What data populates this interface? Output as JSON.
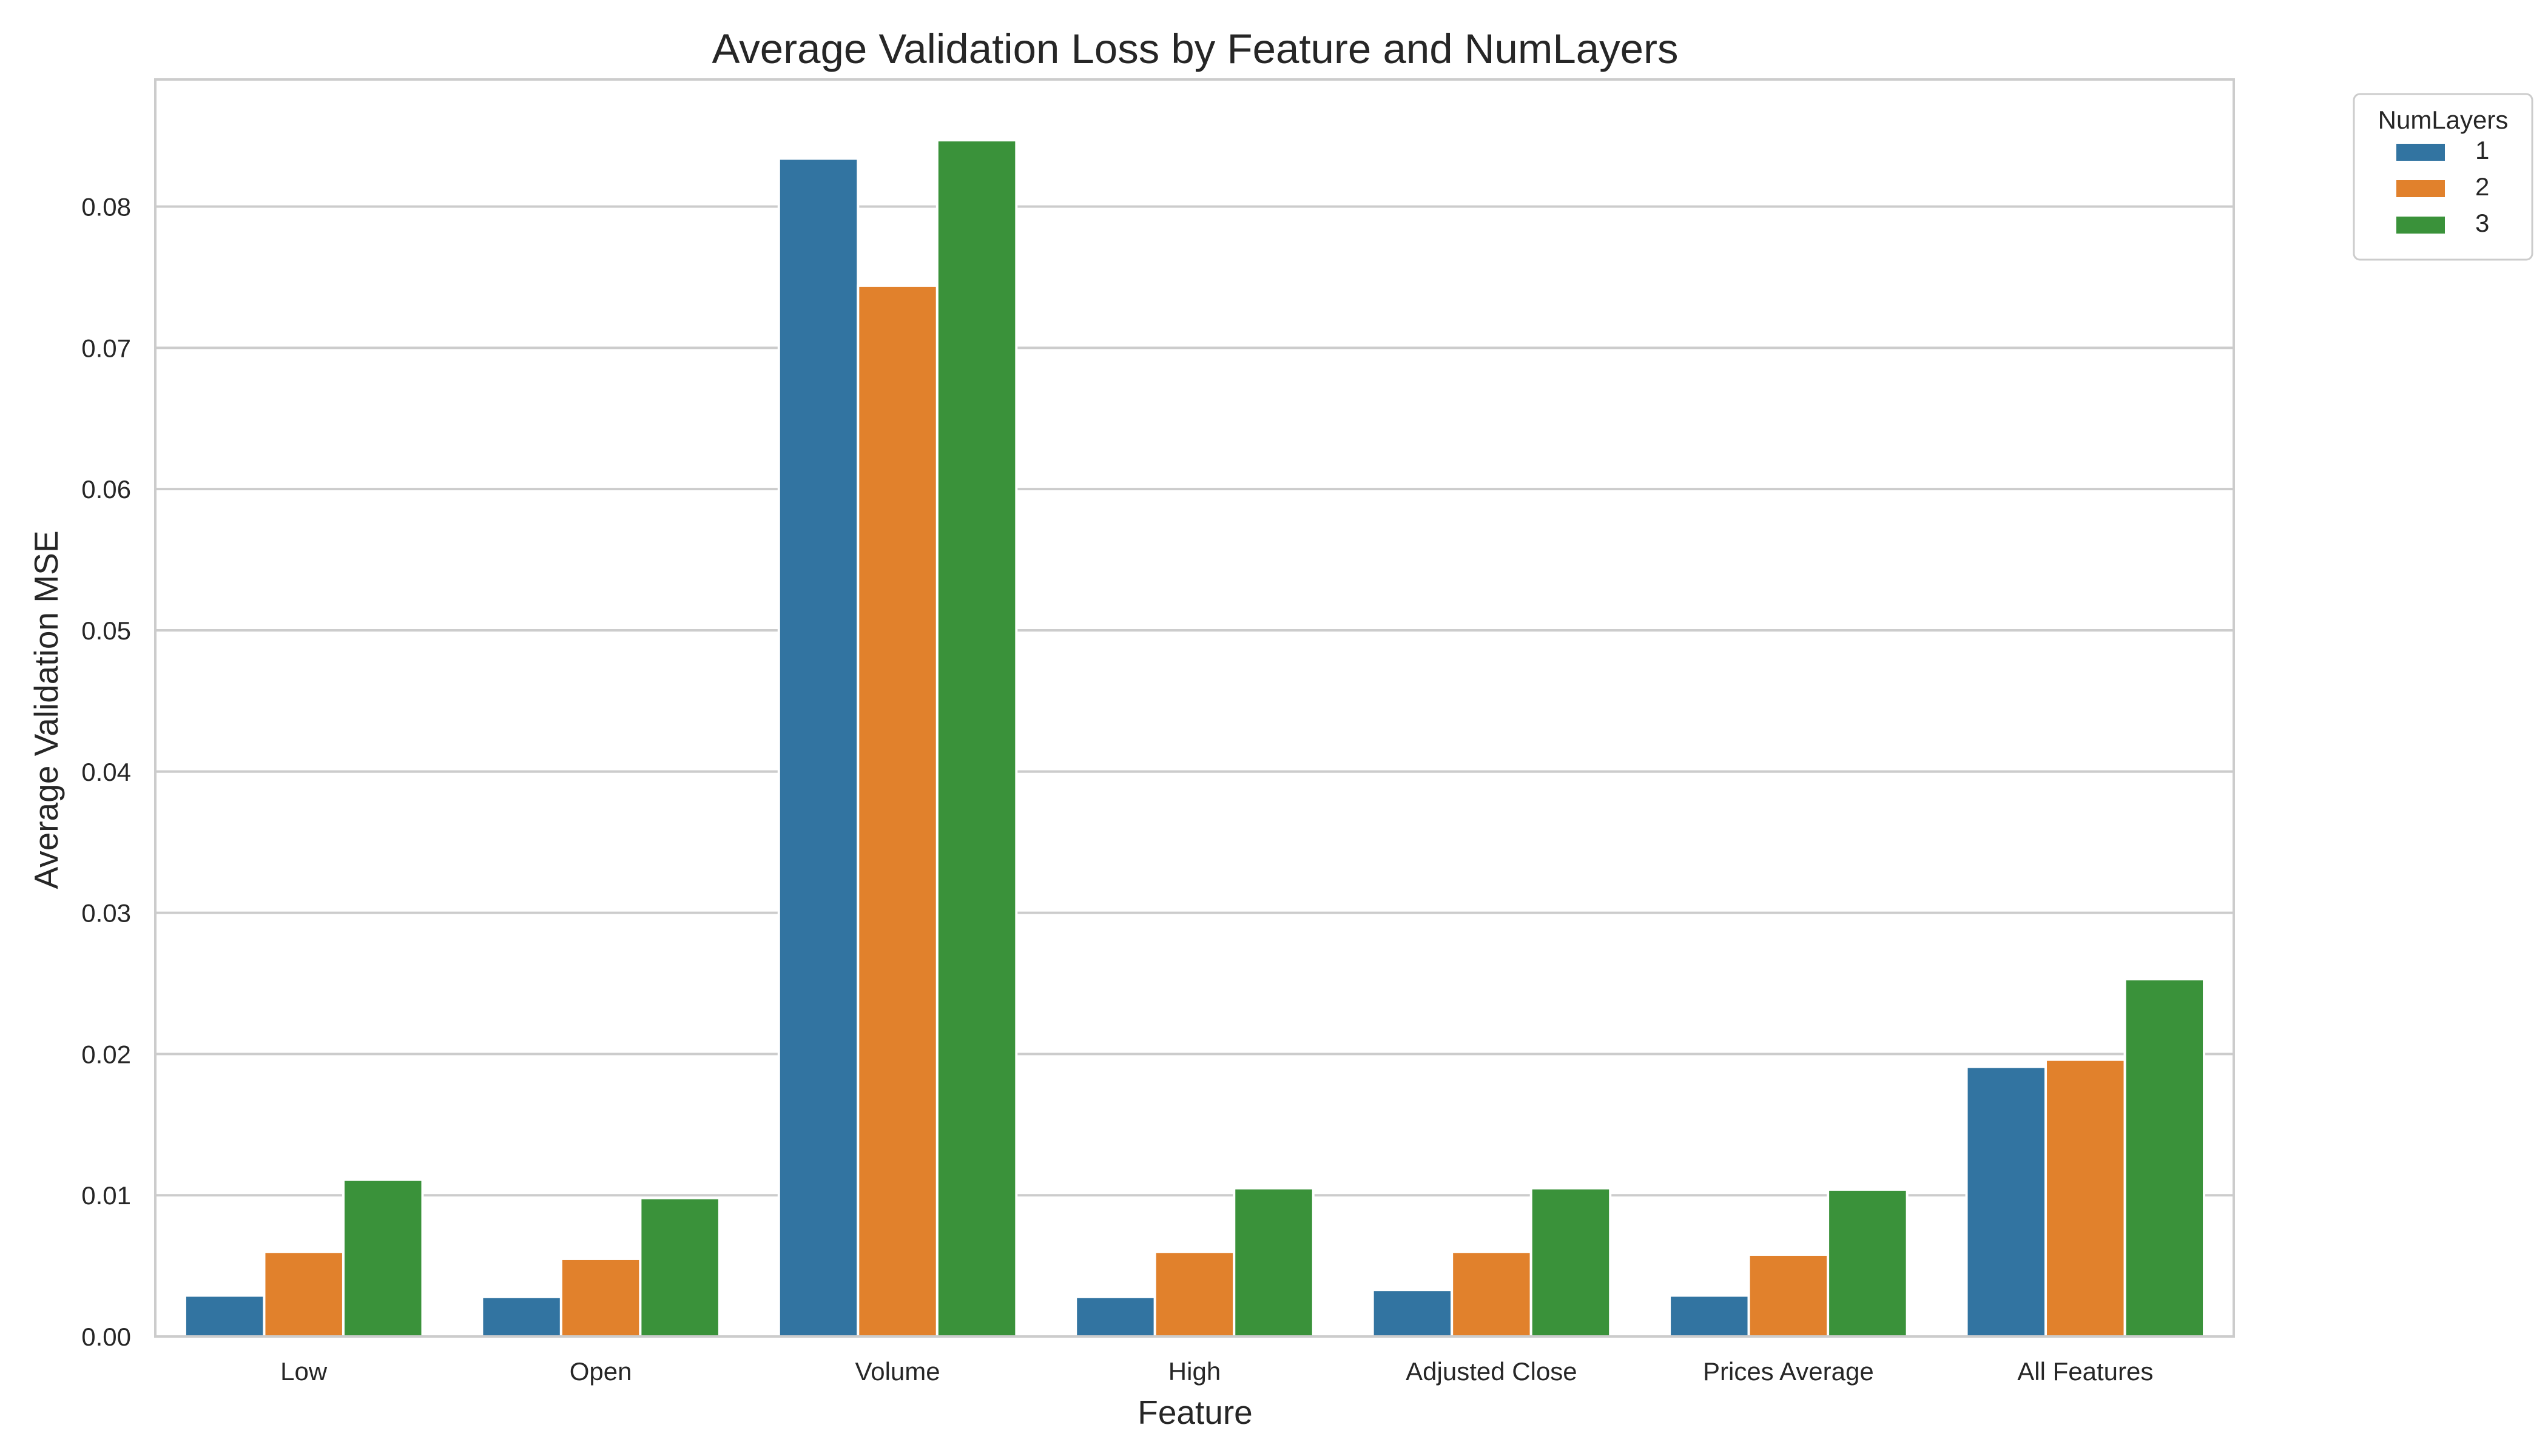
{
  "chart_data": {
    "type": "bar",
    "title": "Average Validation Loss by Feature and NumLayers",
    "xlabel": "Feature",
    "ylabel": "Average Validation MSE",
    "categories": [
      "Low",
      "Open",
      "Volume",
      "High",
      "Adjusted Close",
      "Prices Average",
      "All Features"
    ],
    "ylim": [
      0,
      0.089
    ],
    "yticks": [
      "0.00",
      "0.01",
      "0.02",
      "0.03",
      "0.04",
      "0.05",
      "0.06",
      "0.07",
      "0.08"
    ],
    "grid": "horizontal",
    "legend": {
      "title": "NumLayers",
      "placement": "outside top-right"
    },
    "series": [
      {
        "name": "1",
        "color": "#3274a1",
        "values": [
          0.0029,
          0.0028,
          0.0834,
          0.0028,
          0.0033,
          0.0029,
          0.0191
        ]
      },
      {
        "name": "2",
        "color": "#e1812c",
        "values": [
          0.006,
          0.0055,
          0.0744,
          0.006,
          0.006,
          0.0058,
          0.0196
        ]
      },
      {
        "name": "3",
        "color": "#3a923a",
        "values": [
          0.0111,
          0.0098,
          0.0847,
          0.0105,
          0.0105,
          0.0104,
          0.0253
        ]
      }
    ]
  }
}
